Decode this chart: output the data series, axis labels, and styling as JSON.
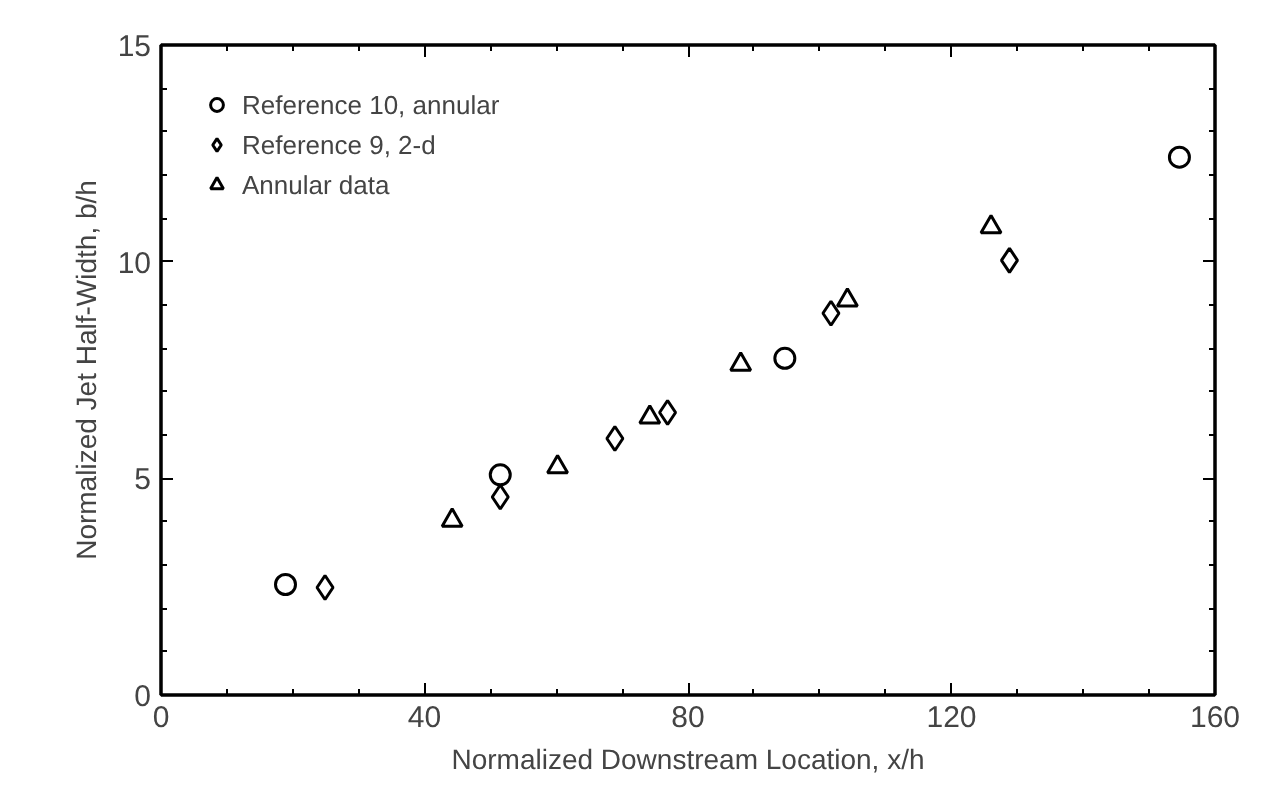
{
  "chart_data": {
    "type": "scatter",
    "xlabel": "Normalized Downstream Location, x/h",
    "ylabel": "Normalized Jet Half-Width, b/h",
    "xlim": [
      0,
      160
    ],
    "ylim": [
      0,
      15
    ],
    "xticks": [
      0,
      40,
      80,
      120,
      160
    ],
    "yticks": [
      0,
      5,
      10,
      15
    ],
    "grid": false,
    "legend": "top left",
    "series": [
      {
        "name": "Reference 10, annular",
        "color": "#000000",
        "marker": "circle",
        "x": [
          18.9,
          51.5,
          94.7,
          154.6
        ],
        "values": [
          2.55,
          5.08,
          7.77,
          12.41
        ]
      },
      {
        "name": "Reference 9, 2-d",
        "color": "#000000",
        "marker": "diamond",
        "x": [
          24.9,
          51.5,
          68.9,
          76.9,
          101.7,
          128.8
        ],
        "values": [
          2.48,
          4.57,
          5.92,
          6.52,
          8.81,
          10.03
        ]
      },
      {
        "name": "Annular data",
        "color": "#000000",
        "marker": "triangle",
        "x": [
          44.2,
          60.2,
          74.2,
          88.0,
          104.2,
          126.0
        ],
        "values": [
          4.03,
          5.26,
          6.41,
          7.63,
          9.11,
          10.8
        ]
      }
    ]
  }
}
